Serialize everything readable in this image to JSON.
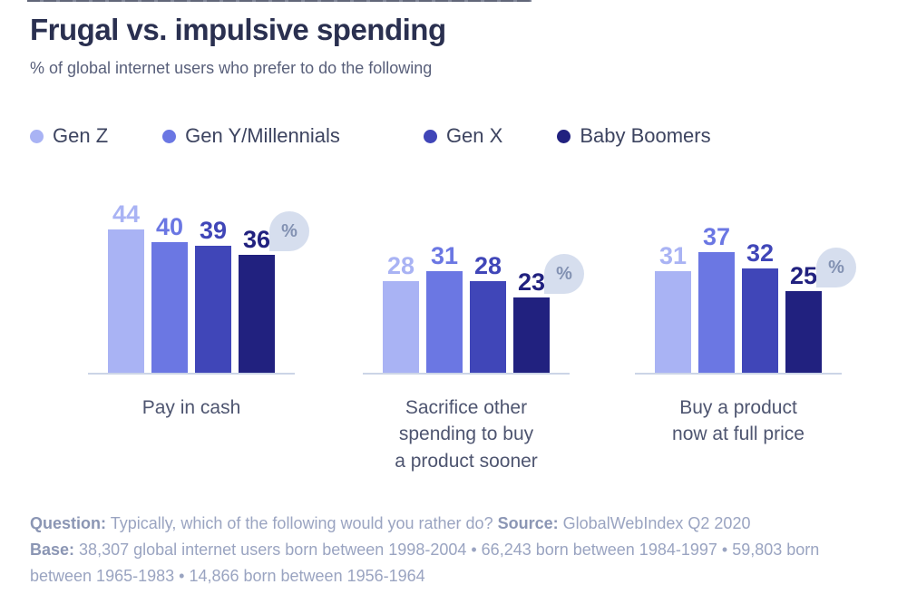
{
  "header": {
    "title": "Frugal vs. impulsive spending",
    "subtitle": "% of global internet users who prefer to do the following"
  },
  "chart_data": {
    "type": "bar",
    "title": "Frugal vs. impulsive spending",
    "subtitle": "% of global internet users who prefer to do the following",
    "unit": "%",
    "categories": [
      "Pay in cash",
      "Sacrifice other spending to buy a product sooner",
      "Buy a product now at full price"
    ],
    "category_display_lines": [
      [
        "Pay in cash"
      ],
      [
        "Sacrifice other",
        "spending to buy",
        "a product sooner"
      ],
      [
        "Buy a product",
        "now at full price"
      ]
    ],
    "series": [
      {
        "name": "Gen Z",
        "color": "#a9b3f4",
        "values": [
          44,
          28,
          31
        ]
      },
      {
        "name": "Gen Y/Millennials",
        "color": "#6b77e3",
        "values": [
          40,
          31,
          37
        ]
      },
      {
        "name": "Gen X",
        "color": "#4046b8",
        "values": [
          39,
          28,
          32
        ]
      },
      {
        "name": "Baby Boomers",
        "color": "#21217f",
        "values": [
          36,
          23,
          25
        ]
      }
    ],
    "ylim": [
      0,
      50
    ],
    "grid": false,
    "value_labels": true,
    "legend_position": "top"
  },
  "badge": {
    "symbol": "%",
    "background": "#d6deee",
    "foreground": "#8291b2"
  },
  "footer": {
    "question_label": "Question:",
    "question_text": "Typically, which of the following would you rather do?",
    "source_label": "Source:",
    "source_text": "GlobalWebIndex Q2 2020",
    "base_label": "Base:",
    "base_text": "38,307 global internet users born between 1998-2004 • 66,243 born between 1984-1997 • 59,803 born between 1965-1983 • 14,866 born between 1956-1964"
  }
}
